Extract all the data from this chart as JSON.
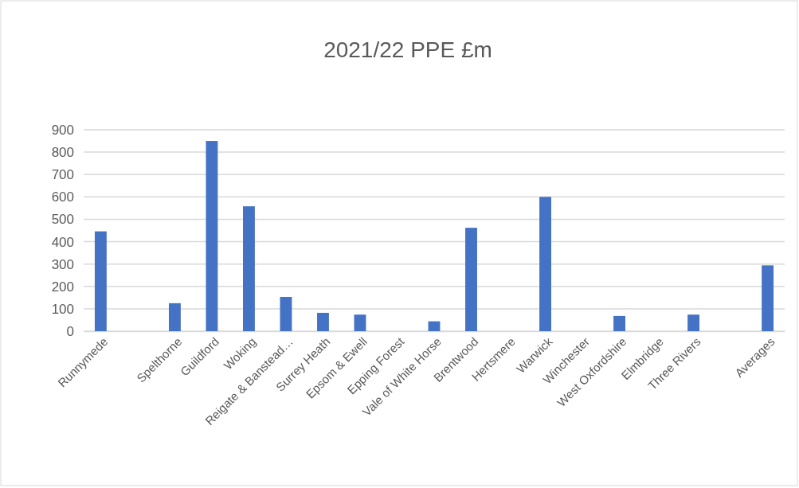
{
  "chart_data": {
    "type": "bar",
    "title": "2021/22 PPE £m",
    "categories": [
      "Runnymede",
      null,
      "Spelthorne",
      "Guildford",
      "Woking",
      "Reigate & Banstead…",
      "Surrey Heath",
      "Epsom & Ewell",
      "Epping Forest",
      "Vale of White Horse",
      "Brentwood",
      "Hertsmere",
      "Warwick",
      "Winchester",
      "West Oxfordshire",
      "Elmbridge",
      "Three Rivers",
      null,
      "Averages"
    ],
    "values": [
      446,
      null,
      125,
      850,
      558,
      153,
      82,
      74,
      null,
      44,
      462,
      null,
      600,
      null,
      68,
      null,
      74,
      null,
      294
    ],
    "color": "#4472c4",
    "ylim": [
      0,
      900
    ],
    "yticks": [
      0,
      100,
      200,
      300,
      400,
      500,
      600,
      700,
      800,
      900
    ],
    "grid": "y"
  }
}
